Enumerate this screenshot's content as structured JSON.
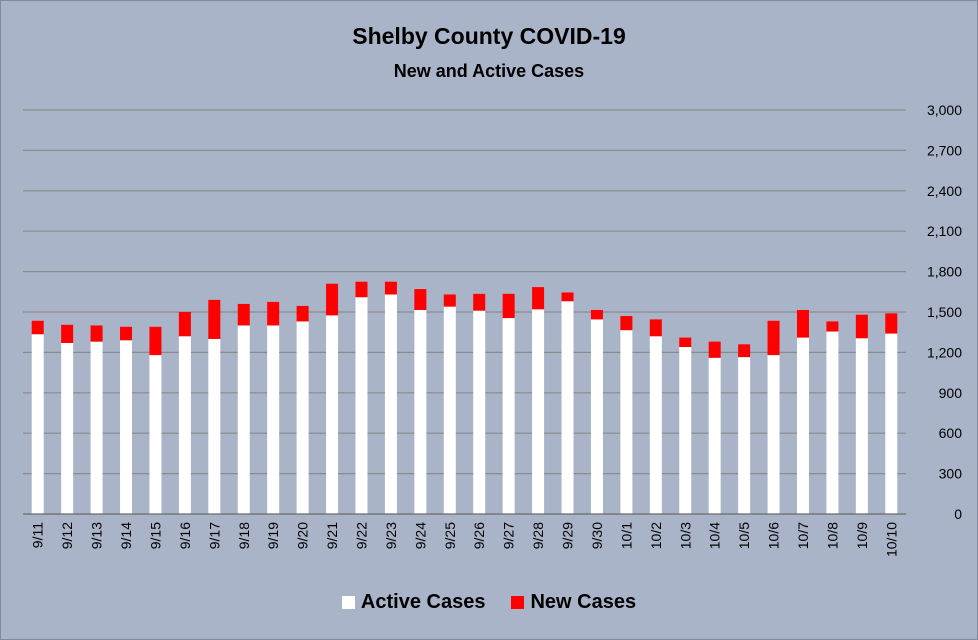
{
  "chart_data": {
    "type": "bar",
    "stacked": true,
    "title": "Shelby County COVID-19",
    "subtitle": "New and Active Cases",
    "xlabel": "",
    "ylabel": "",
    "ylim": [
      0,
      3000
    ],
    "y_ticks": [
      0,
      300,
      600,
      900,
      1200,
      1500,
      1800,
      2100,
      2400,
      2700,
      3000
    ],
    "y_tick_labels": [
      "0",
      "300",
      "600",
      "900",
      "1,200",
      "1,500",
      "1,800",
      "2,100",
      "2,400",
      "2,700",
      "3,000"
    ],
    "y_axis_side": "right",
    "grid": true,
    "legend_position": "bottom",
    "categories": [
      "9/11",
      "9/12",
      "9/13",
      "9/14",
      "9/15",
      "9/16",
      "9/17",
      "9/18",
      "9/19",
      "9/20",
      "9/21",
      "9/22",
      "9/23",
      "9/24",
      "9/25",
      "9/26",
      "9/27",
      "9/28",
      "9/29",
      "9/30",
      "10/1",
      "10/2",
      "10/3",
      "10/4",
      "10/5",
      "10/6",
      "10/7",
      "10/8",
      "10/9",
      "10/10"
    ],
    "series": [
      {
        "name": "Active Cases",
        "color": "#ffffff",
        "values": [
          1335,
          1270,
          1280,
          1290,
          1180,
          1320,
          1300,
          1400,
          1400,
          1430,
          1475,
          1610,
          1630,
          1515,
          1540,
          1510,
          1455,
          1520,
          1580,
          1445,
          1365,
          1320,
          1240,
          1160,
          1165,
          1180,
          1310,
          1355,
          1305,
          1340
        ]
      },
      {
        "name": "New Cases",
        "color": "#ff0000",
        "values": [
          100,
          135,
          120,
          100,
          210,
          180,
          290,
          160,
          175,
          115,
          235,
          115,
          95,
          155,
          90,
          125,
          180,
          165,
          65,
          70,
          105,
          125,
          70,
          120,
          95,
          255,
          205,
          75,
          175,
          150
        ]
      }
    ]
  }
}
